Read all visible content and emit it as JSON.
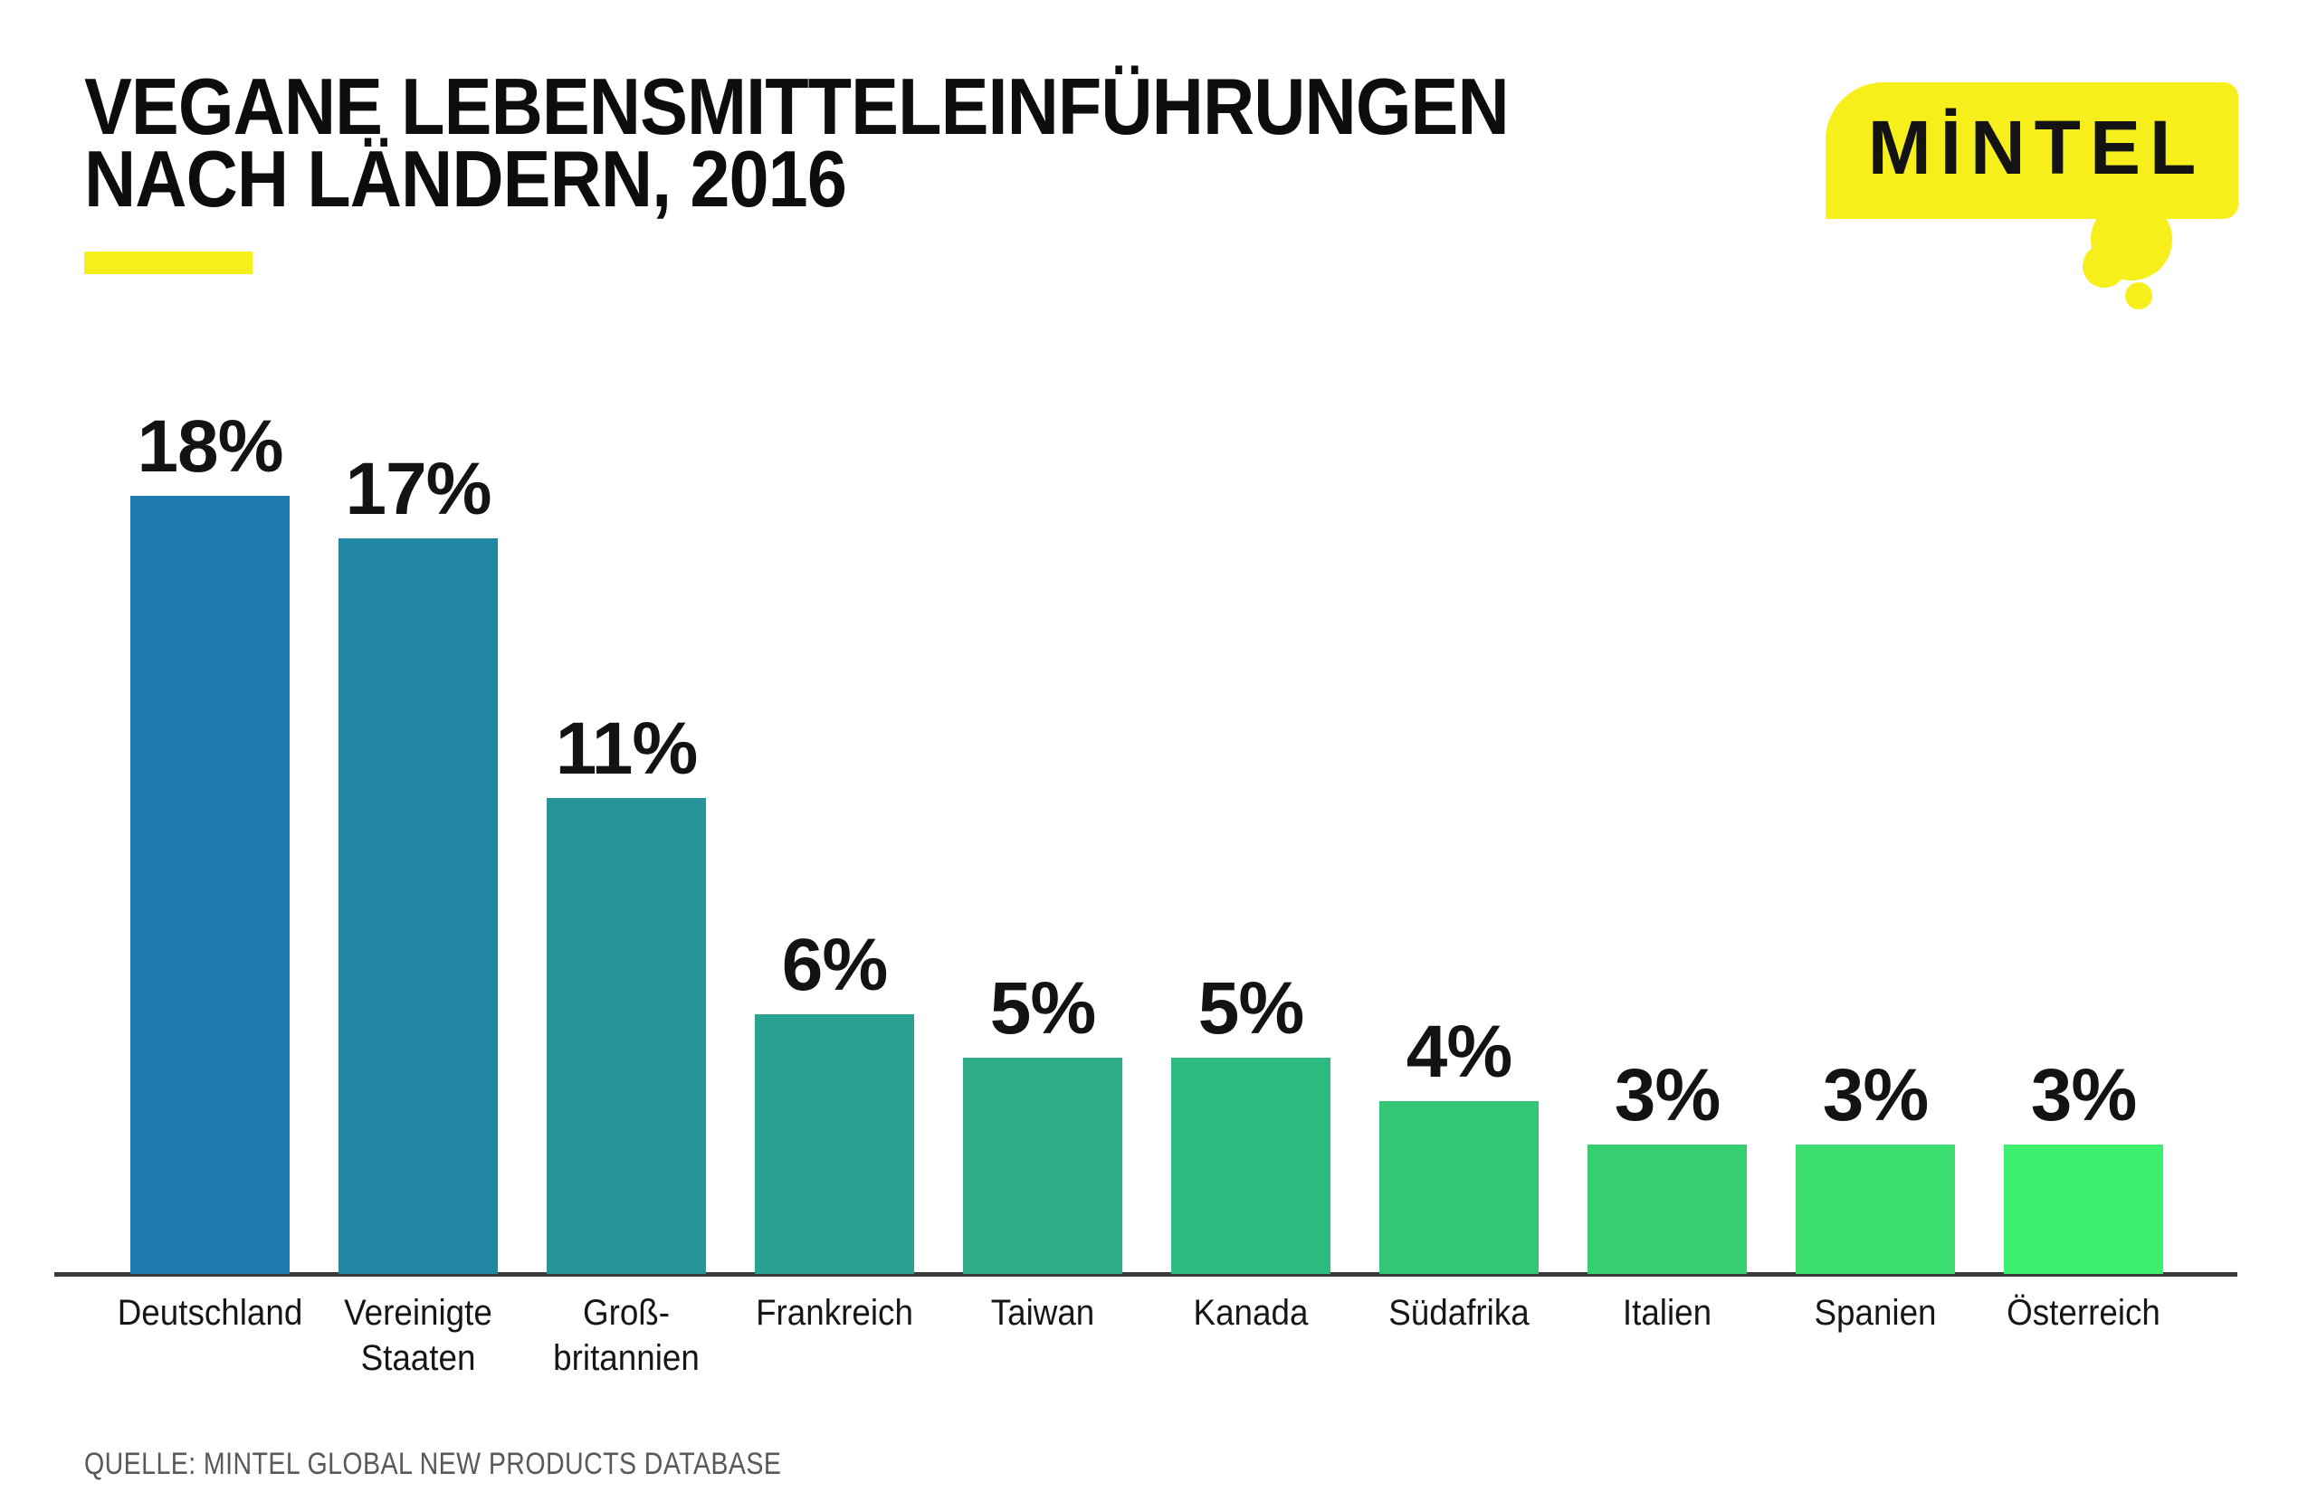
{
  "header": {
    "title_line1": "VEGANE LEBENSMITTELEINFÜHRUNGEN",
    "title_line2": "NACH LÄNDERN, 2016"
  },
  "logo": {
    "text": "MİNTEL",
    "bubble_color": "#F6EF1C",
    "text_color": "#131313"
  },
  "underline_color": "#F6EF1C",
  "source": {
    "text": "QUELLE: MINTEL GLOBAL NEW PRODUCTS DATABASE"
  },
  "chart_data": {
    "type": "bar",
    "title": "VEGANE LEBENSMITTELEINFÜHRUNGEN NACH LÄNDERN, 2016",
    "unit": "%",
    "categories": [
      "Deutschland",
      "Vereinigte Staaten",
      "Großbritannien",
      "Frankreich",
      "Taiwan",
      "Kanada",
      "Südafrika",
      "Italien",
      "Spanien",
      "Österreich"
    ],
    "values": [
      18,
      17,
      11,
      6,
      5,
      5,
      4,
      3,
      3,
      3
    ],
    "value_labels": [
      "18%",
      "17%",
      "11%",
      "6%",
      "5%",
      "5%",
      "4%",
      "3%",
      "3%",
      "3%"
    ],
    "category_label_lines": [
      [
        "Deutschland"
      ],
      [
        "Vereinigte",
        "Staaten"
      ],
      [
        "Groß-",
        "britannien"
      ],
      [
        "Frankreich"
      ],
      [
        "Taiwan"
      ],
      [
        "Kanada"
      ],
      [
        "Südafrika"
      ],
      [
        "Italien"
      ],
      [
        "Spanien"
      ],
      [
        "Österreich"
      ]
    ],
    "bar_colors": [
      "#1E79AE",
      "#2286A5",
      "#27939B",
      "#2AA291",
      "#2DAC88",
      "#2FBA80",
      "#33C676",
      "#36CF70",
      "#3ADF70",
      "#3CF06E"
    ],
    "xlabel": "",
    "ylabel": "",
    "ylim": [
      0,
      19
    ],
    "grid": false,
    "legend": null,
    "value_label_position": "above",
    "axis_line_color": "#383838"
  }
}
